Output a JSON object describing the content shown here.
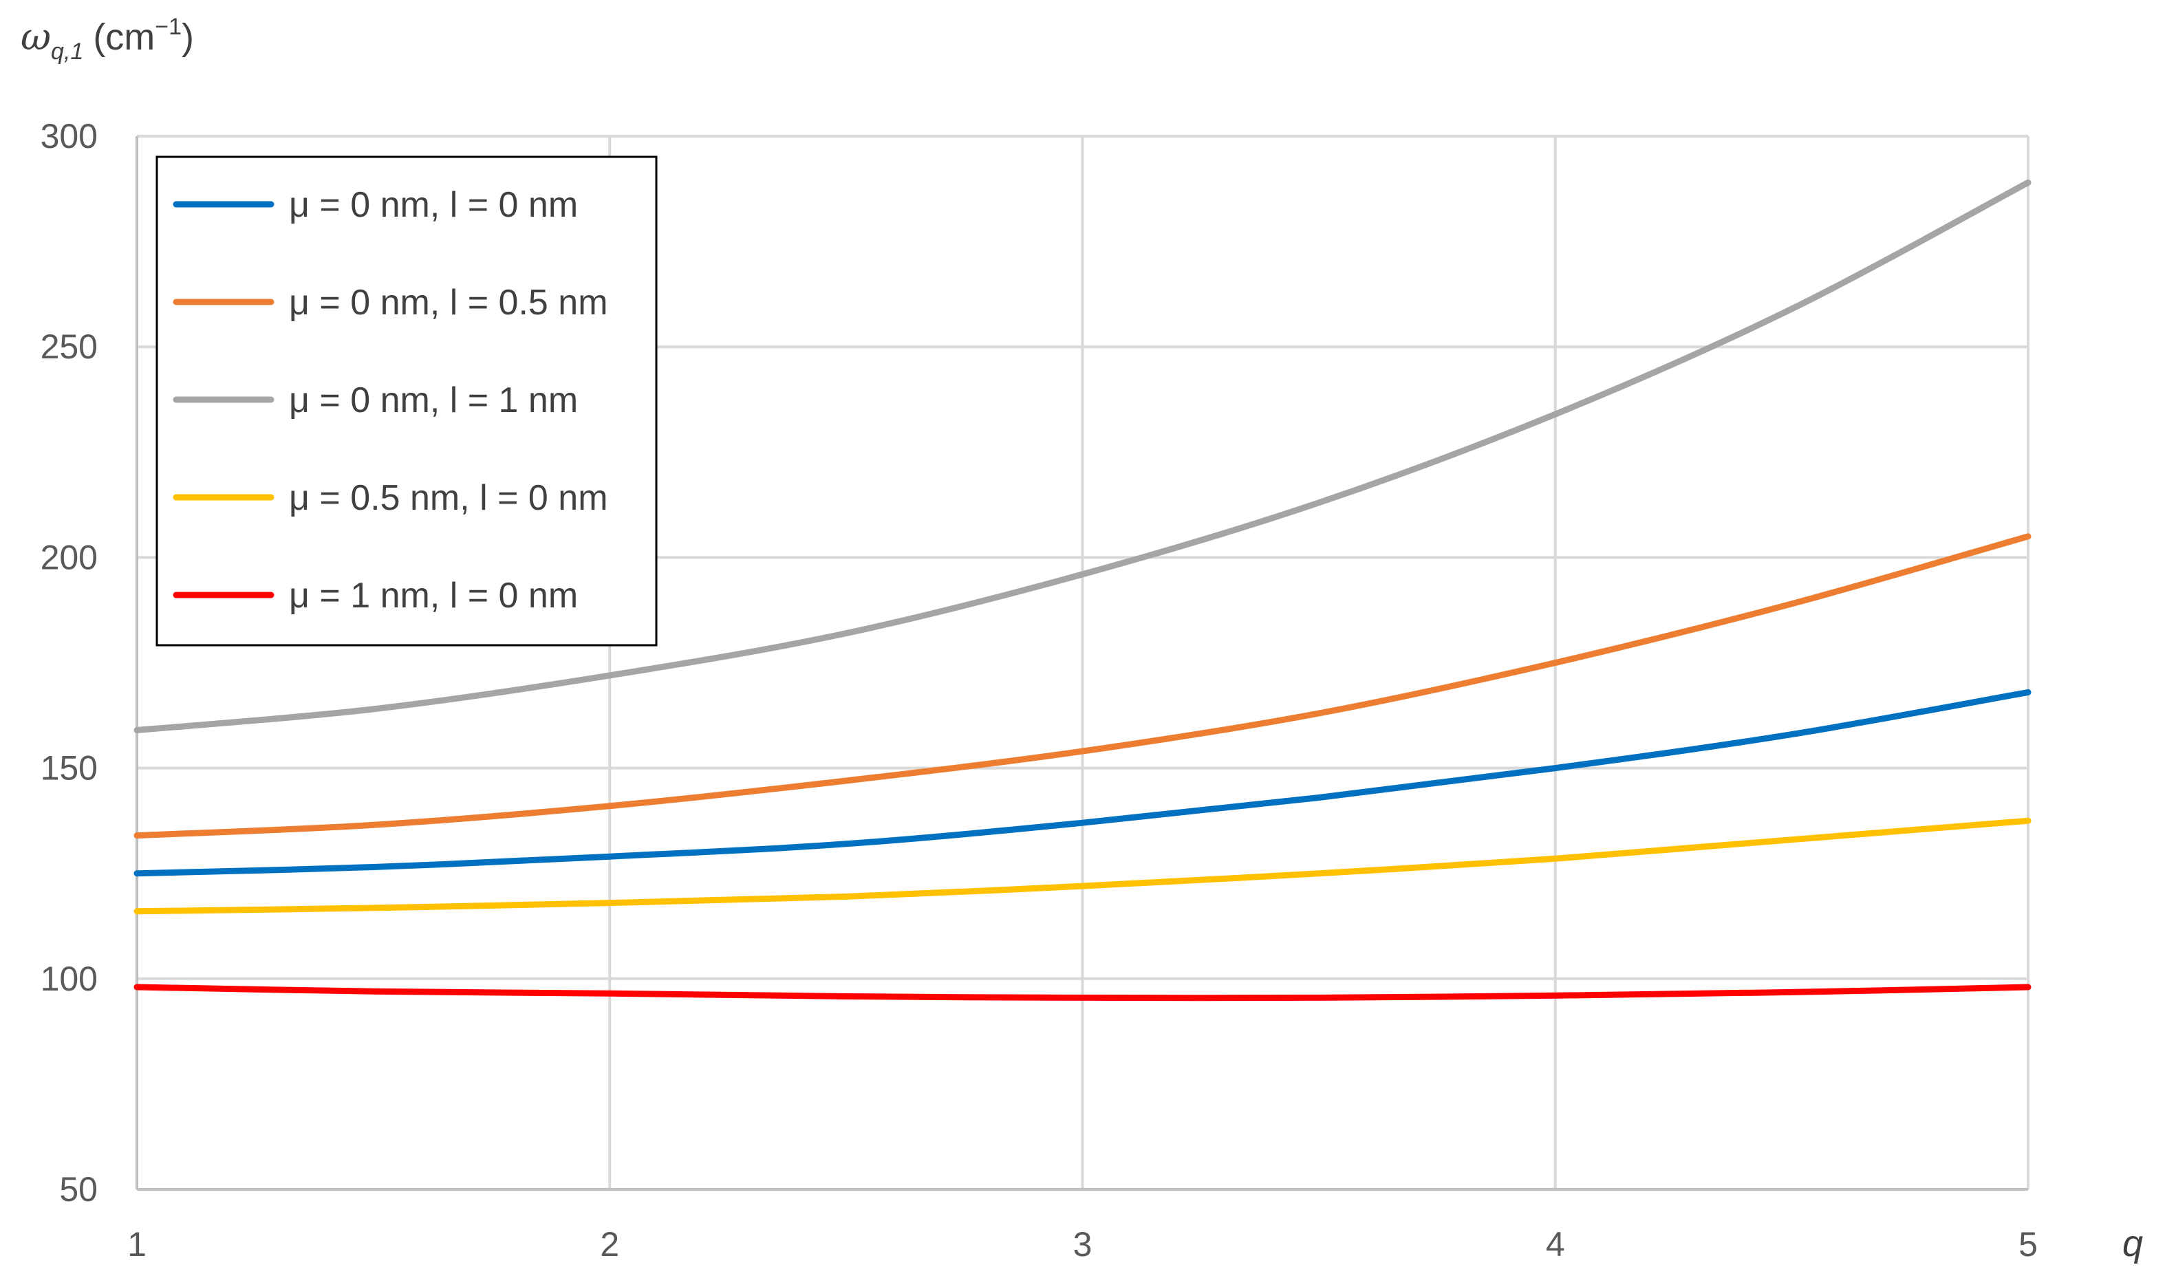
{
  "chart_data": {
    "type": "line",
    "title": "",
    "xlabel": "q",
    "ylabel_main": "ω",
    "ylabel_sub": "q,1",
    "ylabel_unit": "(cm",
    "ylabel_sup": "−1",
    "ylabel_close": ")",
    "xlim": [
      1,
      5
    ],
    "ylim": [
      50,
      300
    ],
    "xticks": [
      "1",
      "2",
      "3",
      "4",
      "5"
    ],
    "yticks": [
      "50",
      "100",
      "150",
      "200",
      "250",
      "300"
    ],
    "grid": true,
    "legend_position": "top-left",
    "x": [
      1,
      1.5,
      2,
      2.5,
      3,
      3.5,
      4,
      4.5,
      5
    ],
    "series": [
      {
        "name": "μ = 0 nm, l = 0 nm",
        "color": "#0070c0",
        "values": [
          125,
          126.5,
          129,
          132,
          137,
          143,
          150,
          158,
          168
        ]
      },
      {
        "name": "μ = 0 nm, l = 0.5 nm",
        "color": "#ed7d31",
        "values": [
          134,
          136.5,
          141,
          147,
          154,
          163,
          175,
          189,
          205
        ]
      },
      {
        "name": "μ = 0 nm, l = 1 nm",
        "color": "#a5a5a5",
        "values": [
          159,
          164,
          172,
          182,
          196,
          213,
          234,
          259,
          289
        ]
      },
      {
        "name": "μ = 0.5 nm, l = 0 nm",
        "color": "#ffc000",
        "values": [
          116,
          116.8,
          118,
          119.5,
          122,
          125,
          128.5,
          133,
          137.5
        ]
      },
      {
        "name": "μ = 1 nm, l = 0 nm",
        "color": "#ff0000",
        "values": [
          98,
          97,
          96.5,
          95.8,
          95.5,
          95.5,
          96,
          96.8,
          98
        ]
      }
    ]
  }
}
